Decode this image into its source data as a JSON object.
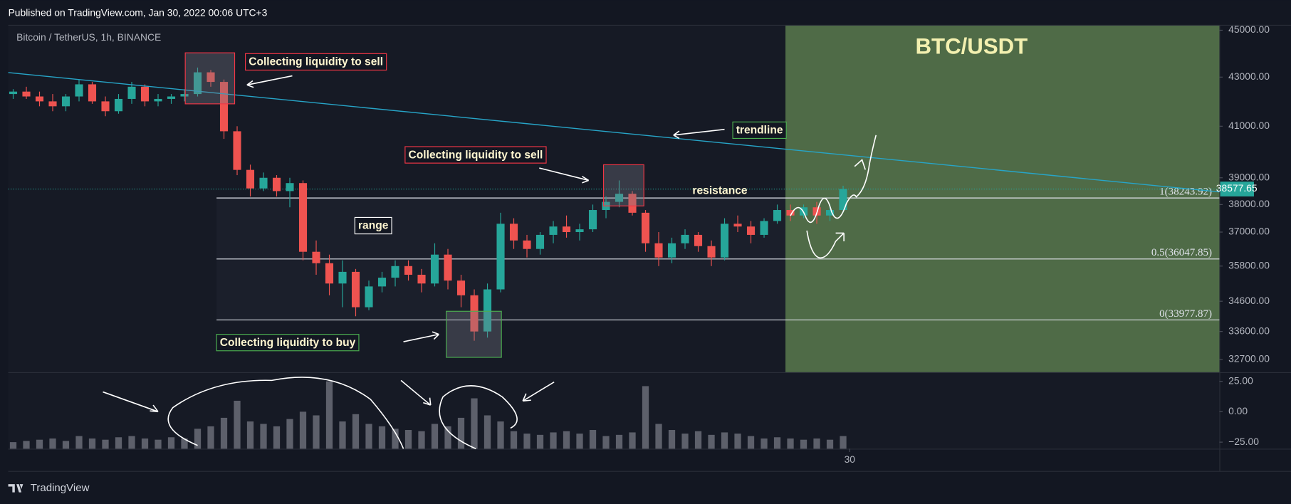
{
  "header": {
    "published": "Published on TradingView.com, Jan 30, 2022 00:06 UTC+3",
    "symbol": "Bitcoin / TetherUS, 1h, BINANCE"
  },
  "footer": "TradingView",
  "chart_data": [
    {
      "type": "candlestick",
      "title": "BTC/USDT",
      "log_scale": true,
      "xlim": [
        -0.375,
        91.56
      ],
      "xticks": [
        {
          "value": 63.5,
          "label": "30"
        }
      ],
      "ylim": [
        32300,
        45200
      ],
      "yticks": [
        {
          "value": 45000,
          "label": "45000.00"
        },
        {
          "value": 43000,
          "label": "43000.00"
        },
        {
          "value": 41000,
          "label": "41000.00"
        },
        {
          "value": 39000,
          "label": "39000.00"
        },
        {
          "value": 38000,
          "label": "38000.00"
        },
        {
          "value": 37000,
          "label": "37000.00"
        },
        {
          "value": 35800,
          "label": "35800.00"
        },
        {
          "value": 34600,
          "label": "34600.00"
        },
        {
          "value": 33600,
          "label": "33600.00"
        },
        {
          "value": 32700,
          "label": "32700.00"
        }
      ],
      "up_color": "#26a69a",
      "down_color": "#ef5350",
      "last_price": 38577.65,
      "open": [
        42300,
        42400,
        42200,
        42000,
        41800,
        42200,
        42700,
        42000,
        41600,
        42100,
        42600,
        42000,
        42100,
        42200,
        42300,
        43200,
        42800,
        40800,
        39300,
        38600,
        39000,
        38500,
        38800,
        36300,
        35900,
        35200,
        35600,
        34400,
        35100,
        35400,
        35800,
        35500,
        35200,
        36200,
        35300,
        34800,
        33600,
        35000,
        37300,
        36700,
        36400,
        36900,
        37200,
        37000,
        37100,
        37800,
        38100,
        38400,
        37700,
        36600,
        36100,
        36600,
        36900,
        36500,
        36100,
        37300,
        37200,
        36900,
        37400,
        37800,
        37600,
        37900,
        37600,
        37800
      ],
      "high": [
        42500,
        42600,
        42400,
        42300,
        42300,
        42900,
        42800,
        42200,
        42300,
        42800,
        42700,
        42300,
        42300,
        42500,
        43400,
        43300,
        42900,
        41000,
        39500,
        39200,
        39100,
        39000,
        38900,
        36700,
        36200,
        36000,
        35700,
        35300,
        35600,
        36000,
        36000,
        35700,
        36600,
        36400,
        35500,
        35000,
        35200,
        37700,
        37500,
        36900,
        37000,
        37400,
        37600,
        37300,
        38000,
        38300,
        38900,
        38500,
        37800,
        37000,
        36800,
        37100,
        37000,
        36700,
        37500,
        37600,
        37400,
        37500,
        38000,
        38000,
        38000,
        38100,
        38000,
        38700
      ],
      "low": [
        42100,
        42100,
        41800,
        41600,
        41600,
        42000,
        41900,
        41400,
        41500,
        41900,
        41800,
        41800,
        41900,
        42000,
        42200,
        42600,
        40500,
        39100,
        38300,
        38500,
        38300,
        37900,
        36000,
        35500,
        34800,
        34400,
        34100,
        34300,
        34900,
        35100,
        35300,
        34900,
        35100,
        35000,
        34400,
        33300,
        33400,
        34900,
        36400,
        36100,
        36200,
        36600,
        36800,
        36700,
        37000,
        37500,
        37900,
        37600,
        36300,
        35800,
        35900,
        36400,
        36300,
        35800,
        36000,
        37000,
        36600,
        36800,
        37300,
        37400,
        37500,
        37300,
        37400,
        37700
      ],
      "close": [
        42400,
        42200,
        42000,
        41800,
        42200,
        42700,
        42000,
        41600,
        42100,
        42600,
        42000,
        42100,
        42200,
        42300,
        43200,
        42800,
        40800,
        39300,
        38600,
        39000,
        38500,
        38800,
        36300,
        35900,
        35200,
        35600,
        34400,
        35100,
        35400,
        35800,
        35500,
        35200,
        36200,
        35300,
        34800,
        33600,
        35000,
        37300,
        36700,
        36400,
        36900,
        37200,
        37000,
        37100,
        37800,
        38100,
        38400,
        37700,
        36600,
        36100,
        36600,
        36900,
        36500,
        36100,
        37300,
        37200,
        36900,
        37400,
        37800,
        37600,
        37900,
        37600,
        37800,
        38577.65
      ],
      "fib": [
        {
          "value": 38243.92,
          "label": "1(38243.92)"
        },
        {
          "value": 36047.85,
          "label": "0.5(36047.85)"
        },
        {
          "value": 33977.87,
          "label": "0(33977.87)"
        }
      ],
      "annotations": [
        "Collecting liquidity to sell",
        "Collecting liquidity to sell",
        "Collecting liquidity to buy",
        "range",
        "resistance",
        "trendline"
      ]
    },
    {
      "type": "bar",
      "color": "#5d606b",
      "ylim": [
        -30.4,
        31.8
      ],
      "yticks": [
        {
          "value": 25,
          "label": "25.00"
        },
        {
          "value": 0,
          "label": "0.00"
        },
        {
          "value": -25,
          "label": "−25.00"
        }
      ],
      "values": [
        -25,
        -24,
        -23,
        -22,
        -24,
        -20,
        -22,
        -23,
        -21,
        -20,
        -22,
        -23,
        -21,
        -22,
        -14,
        -12,
        -5,
        9,
        -8,
        -10,
        -12,
        -6,
        0,
        -3,
        25,
        -8,
        -2,
        -10,
        -12,
        -14,
        -15,
        -16,
        -10,
        -12,
        -5,
        11,
        -3,
        -8,
        -16,
        -18,
        -19,
        -17,
        -16,
        -18,
        -15,
        -20,
        -19,
        -17,
        21,
        -10,
        -15,
        -18,
        -16,
        -19,
        -17,
        -18,
        -20,
        -22,
        -21,
        -22,
        -23,
        -22,
        -23,
        -20
      ]
    }
  ]
}
